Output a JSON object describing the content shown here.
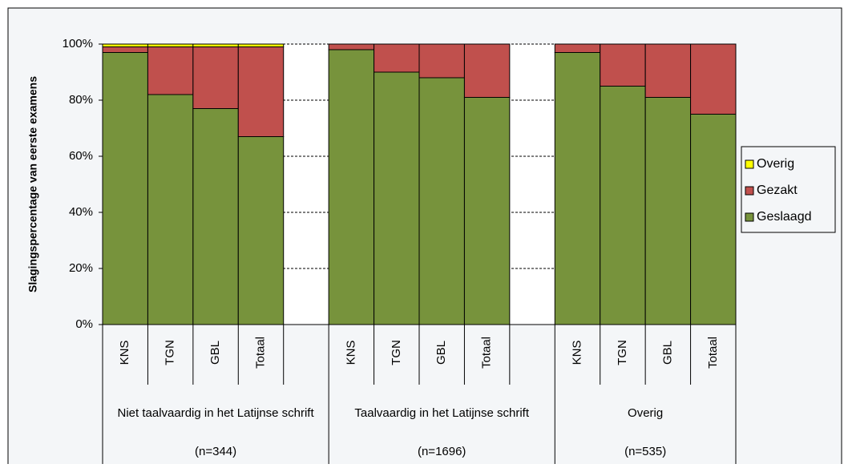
{
  "chart_data": {
    "type": "bar",
    "stacked": true,
    "y_label": "Slagingspercentage van eerste examens",
    "groups": [
      {
        "label": "Niet taalvaardig in het Latijnse schrift",
        "n": "(n=344)",
        "categories": [
          "KNS",
          "TGN",
          "GBL",
          "Totaal",
          null
        ]
      },
      {
        "label": "Taalvaardig in het Latijnse schrift",
        "n": "(n=1696)",
        "categories": [
          "KNS",
          "TGN",
          "GBL",
          "Totaal",
          null
        ]
      },
      {
        "label": "Overig",
        "n": "(n=535)",
        "categories": [
          "KNS",
          "TGN",
          "GBL",
          "Totaal"
        ]
      }
    ],
    "series": [
      {
        "name": "Geslaagd",
        "color": "#77933c",
        "values": [
          97,
          82,
          77,
          67,
          null,
          98,
          90,
          88,
          81,
          null,
          97,
          85,
          81,
          75
        ]
      },
      {
        "name": "Gezakt",
        "color": "#c0504d",
        "values": [
          2,
          17,
          22,
          32,
          null,
          2,
          10,
          12,
          19,
          null,
          3,
          15,
          19,
          25
        ]
      },
      {
        "name": "Overig",
        "color": "#ffff00",
        "values": [
          1,
          1,
          1,
          1,
          null,
          0,
          0,
          0,
          0,
          null,
          0,
          0,
          0,
          0
        ]
      }
    ],
    "ylim": [
      0,
      100
    ],
    "yticks": [
      {
        "value": 0,
        "label": "0%"
      },
      {
        "value": 20,
        "label": "20%"
      },
      {
        "value": 40,
        "label": "40%"
      },
      {
        "value": 60,
        "label": "60%"
      },
      {
        "value": 80,
        "label": "80%"
      },
      {
        "value": 100,
        "label": "100%"
      }
    ],
    "grid": true,
    "legend": "right"
  }
}
